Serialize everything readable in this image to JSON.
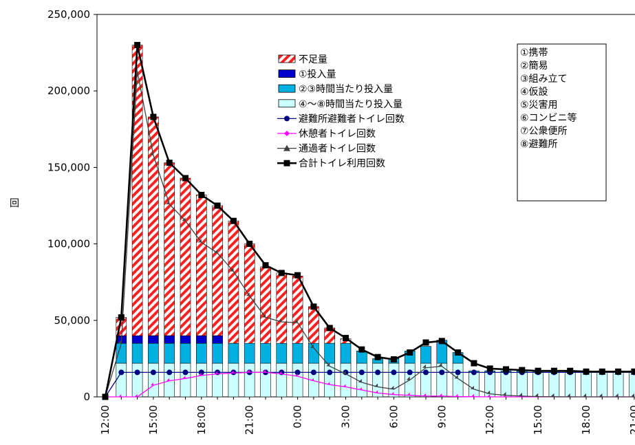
{
  "chart_data": {
    "type": "bar",
    "title": "",
    "ylabel": "回",
    "xlabel": "",
    "ylim": [
      0,
      250000
    ],
    "y_ticks": [
      "0",
      "50,000",
      "100,000",
      "150,000",
      "200,000",
      "250,000"
    ],
    "y_tick_values": [
      0,
      50000,
      100000,
      150000,
      200000,
      250000
    ],
    "categories": [
      "12:00",
      "13:00",
      "14:00",
      "15:00",
      "16:00",
      "17:00",
      "18:00",
      "19:00",
      "20:00",
      "21:00",
      "22:00",
      "23:00",
      "0:00",
      "1:00",
      "2:00",
      "3:00",
      "4:00",
      "5:00",
      "6:00",
      "7:00",
      "8:00",
      "9:00",
      "10:00",
      "11:00",
      "12:00",
      "13:00",
      "14:00",
      "15:00",
      "16:00",
      "17:00",
      "18:00",
      "19:00",
      "20:00",
      "21:00"
    ],
    "x_tick_labels": [
      "12:00",
      "15:00",
      "18:00",
      "21:00",
      "0:00",
      "3:00",
      "6:00",
      "9:00",
      "12:00",
      "15:00",
      "18:00",
      "21:00"
    ],
    "x_tick_indices": [
      0,
      3,
      6,
      9,
      12,
      15,
      18,
      21,
      24,
      27,
      30,
      33
    ],
    "stacked_series": [
      {
        "name": "④～⑧時間当たり投入量",
        "color": "#ccffff",
        "values": [
          0,
          22000,
          22000,
          22000,
          22000,
          22000,
          22000,
          22000,
          22000,
          22000,
          22000,
          22000,
          22000,
          22000,
          22000,
          22000,
          22000,
          22000,
          22000,
          22000,
          22000,
          22000,
          22000,
          16000,
          16000,
          16000,
          16000,
          16000,
          16000,
          16000,
          16000,
          16000,
          16000,
          16000
        ]
      },
      {
        "name": "②③時間当たり投入量",
        "color": "#00b0e0",
        "values": [
          0,
          13000,
          13000,
          13000,
          13000,
          13000,
          13000,
          13000,
          13000,
          13000,
          13000,
          13000,
          13000,
          13000,
          13000,
          13000,
          8000,
          3000,
          3000,
          8000,
          11000,
          15000,
          7000,
          1000,
          1000,
          1000,
          1000,
          1000,
          1000,
          1000,
          1000,
          1000,
          1000,
          1000
        ]
      },
      {
        "name": "①投入量",
        "color": "#0000cc",
        "values": [
          0,
          5000,
          5000,
          5000,
          5000,
          5000,
          5000,
          5000,
          0,
          0,
          0,
          0,
          0,
          0,
          0,
          0,
          0,
          0,
          0,
          0,
          0,
          0,
          0,
          0,
          0,
          0,
          0,
          0,
          0,
          0,
          0,
          0,
          0,
          0
        ]
      },
      {
        "name": "不足量",
        "color": "#ff2020",
        "hatched": true,
        "values": [
          0,
          12000,
          190000,
          143000,
          113000,
          103000,
          92000,
          85000,
          80000,
          65000,
          50000,
          46000,
          44000,
          24000,
          10000,
          3000,
          0,
          0,
          0,
          0,
          0,
          0,
          0,
          0,
          0,
          0,
          0,
          0,
          0,
          0,
          0,
          0,
          0,
          0
        ]
      }
    ],
    "line_series": [
      {
        "name": "避難所避難者トイレ回数",
        "color": "#000080",
        "marker": "circle",
        "values": [
          0,
          16000,
          16000,
          16000,
          16000,
          16000,
          16000,
          16000,
          16000,
          16000,
          16000,
          16000,
          16000,
          16000,
          16000,
          16000,
          16000,
          16000,
          16000,
          16000,
          16000,
          16000,
          16000,
          16000,
          16000,
          16000,
          16000,
          16000,
          16000,
          16000,
          16000,
          16000,
          16000,
          16000
        ]
      },
      {
        "name": "休憩者トイレ回数",
        "color": "#ff00ff",
        "marker": "diamond",
        "values": [
          0,
          0,
          0,
          7500,
          10500,
          12000,
          14000,
          15000,
          15500,
          16000,
          16000,
          15000,
          13500,
          10500,
          8000,
          6500,
          4500,
          2500,
          1500,
          1000,
          500,
          500,
          200,
          100,
          0,
          0,
          0,
          0,
          0,
          0,
          0,
          0,
          0,
          0
        ]
      },
      {
        "name": "通過者トイレ回数",
        "color": "#404040",
        "marker": "triangle",
        "values": [
          0,
          35000,
          213000,
          158000,
          126000,
          115000,
          101000,
          94000,
          82000,
          66000,
          52000,
          49000,
          48500,
          32000,
          20000,
          15000,
          9500,
          6500,
          5000,
          11000,
          19000,
          20000,
          12000,
          5000,
          2000,
          1000,
          500,
          200,
          100,
          0,
          0,
          0,
          0,
          0
        ]
      },
      {
        "name": "合計トイレ利用回数",
        "color": "#000000",
        "marker": "square",
        "values": [
          0,
          52000,
          230000,
          183000,
          153000,
          143000,
          132000,
          125000,
          115000,
          100000,
          86000,
          81000,
          79500,
          59000,
          45000,
          38500,
          31000,
          26000,
          24500,
          29000,
          35500,
          36500,
          29000,
          22000,
          18500,
          18000,
          17500,
          17000,
          17000,
          17000,
          16500,
          16500,
          16500,
          16500
        ]
      }
    ],
    "legend": [
      {
        "name": "不足量",
        "kind": "hatch",
        "color": "#ff2020"
      },
      {
        "name": "①投入量",
        "kind": "box",
        "color": "#0000cc"
      },
      {
        "name": "②③時間当たり投入量",
        "kind": "box",
        "color": "#00b0e0"
      },
      {
        "name": "④～⑧時間当たり投入量",
        "kind": "box",
        "color": "#ccffff"
      },
      {
        "name": "避難所避難者トイレ回数",
        "kind": "line",
        "marker": "circle",
        "color": "#000080"
      },
      {
        "name": "休憩者トイレ回数",
        "kind": "line",
        "marker": "diamond",
        "color": "#ff00ff"
      },
      {
        "name": "通過者トイレ回数",
        "kind": "line",
        "marker": "triangle",
        "color": "#404040"
      },
      {
        "name": "合計トイレ利用回数",
        "kind": "line",
        "marker": "square",
        "color": "#000000"
      }
    ],
    "legend_position": "top-center",
    "notes": [
      "①携帯",
      "②簡易",
      "③組み立て",
      "④仮設",
      "⑤災害用",
      "⑥コンビニ等",
      "⑦公衆便所",
      "⑧避難所"
    ],
    "notes_position": "top-right",
    "grid": false
  }
}
